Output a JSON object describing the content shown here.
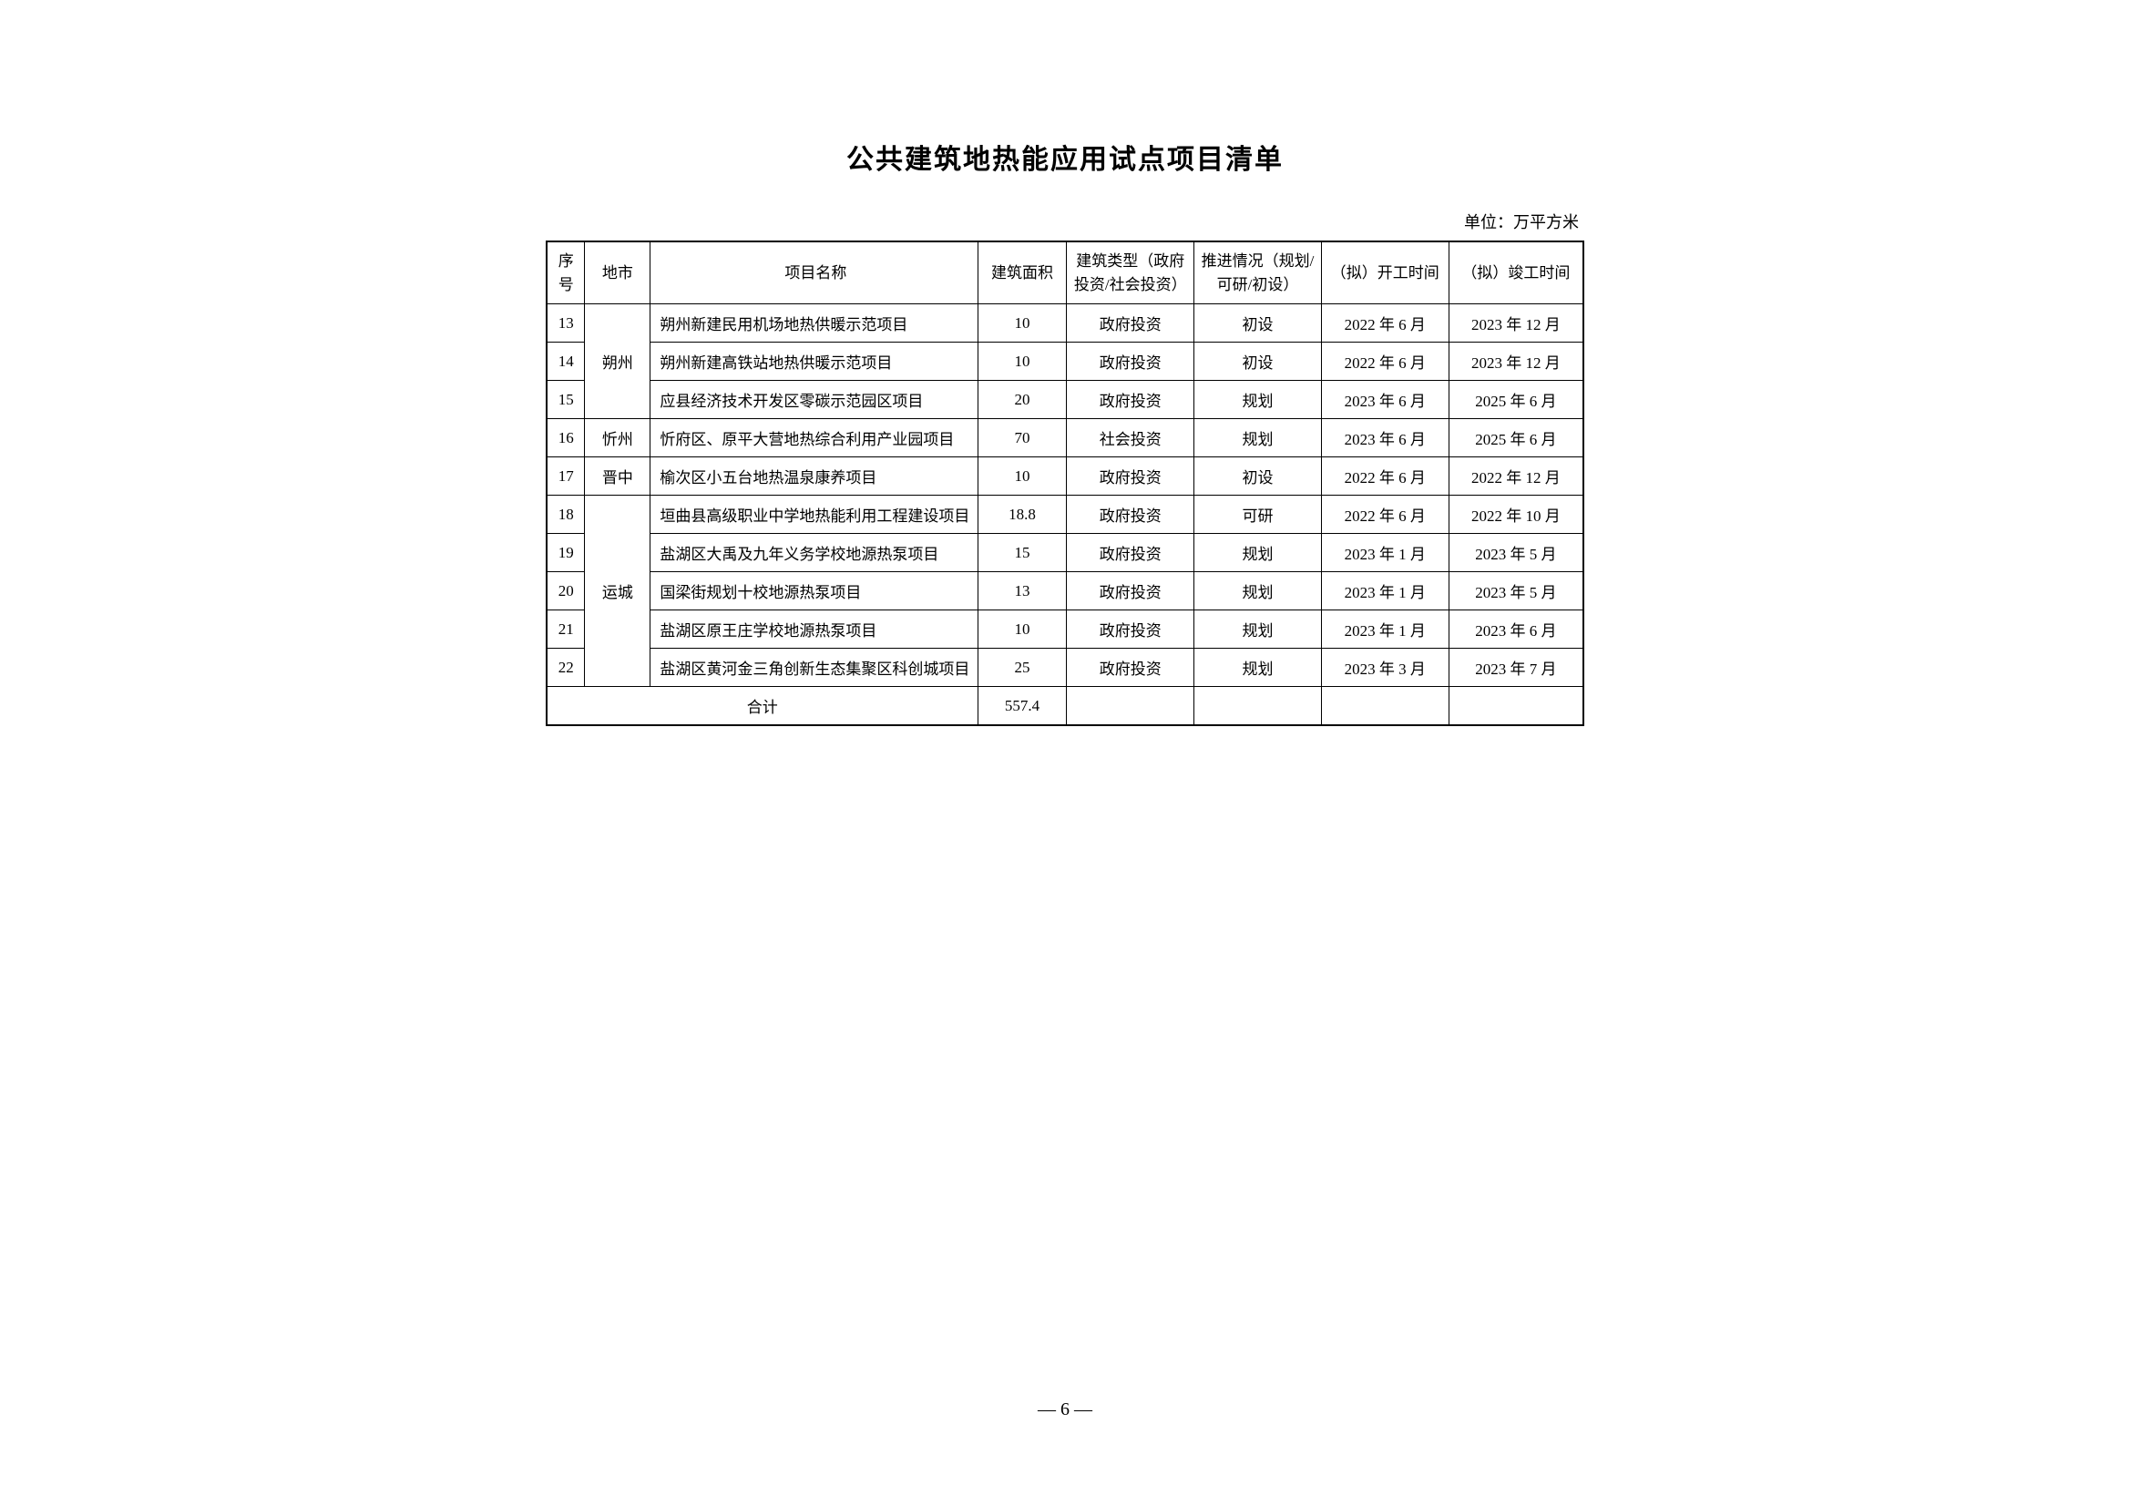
{
  "title": "公共建筑地热能应用试点项目清单",
  "unit_label": "单位：万平方米",
  "headers": {
    "seq": "序号",
    "city": "地市",
    "name": "项目名称",
    "area": "建筑面积",
    "type": "建筑类型（政府投资/社会投资）",
    "progress": "推进情况（规划/可研/初设）",
    "start": "（拟）开工时间",
    "end": "（拟）竣工时间"
  },
  "city_groups": [
    {
      "city": "朔州",
      "rowspan": 3
    },
    {
      "city": "忻州",
      "rowspan": 1
    },
    {
      "city": "晋中",
      "rowspan": 1
    },
    {
      "city": "运城",
      "rowspan": 5
    }
  ],
  "rows": [
    {
      "seq": "13",
      "city_index": 0,
      "show_city": true,
      "name": "朔州新建民用机场地热供暖示范项目",
      "area": "10",
      "type": "政府投资",
      "progress": "初设",
      "start": "2022 年 6 月",
      "end": "2023 年 12 月"
    },
    {
      "seq": "14",
      "city_index": 0,
      "show_city": false,
      "name": "朔州新建高铁站地热供暖示范项目",
      "area": "10",
      "type": "政府投资",
      "progress": "初设",
      "start": "2022 年 6 月",
      "end": "2023 年 12 月"
    },
    {
      "seq": "15",
      "city_index": 0,
      "show_city": false,
      "name": "应县经济技术开发区零碳示范园区项目",
      "area": "20",
      "type": "政府投资",
      "progress": "规划",
      "start": "2023 年 6 月",
      "end": "2025 年 6 月"
    },
    {
      "seq": "16",
      "city_index": 1,
      "show_city": true,
      "name": "忻府区、原平大营地热综合利用产业园项目",
      "area": "70",
      "type": "社会投资",
      "progress": "规划",
      "start": "2023 年 6 月",
      "end": "2025 年 6 月"
    },
    {
      "seq": "17",
      "city_index": 2,
      "show_city": true,
      "name": "榆次区小五台地热温泉康养项目",
      "area": "10",
      "type": "政府投资",
      "progress": "初设",
      "start": "2022 年 6 月",
      "end": "2022 年 12 月"
    },
    {
      "seq": "18",
      "city_index": 3,
      "show_city": true,
      "name": "垣曲县高级职业中学地热能利用工程建设项目",
      "area": "18.8",
      "type": "政府投资",
      "progress": "可研",
      "start": "2022 年 6 月",
      "end": "2022 年 10 月"
    },
    {
      "seq": "19",
      "city_index": 3,
      "show_city": false,
      "name": "盐湖区大禹及九年义务学校地源热泵项目",
      "area": "15",
      "type": "政府投资",
      "progress": "规划",
      "start": "2023 年 1 月",
      "end": "2023 年 5 月"
    },
    {
      "seq": "20",
      "city_index": 3,
      "show_city": false,
      "name": "国梁街规划十校地源热泵项目",
      "area": "13",
      "type": "政府投资",
      "progress": "规划",
      "start": "2023 年 1 月",
      "end": "2023 年 5 月"
    },
    {
      "seq": "21",
      "city_index": 3,
      "show_city": false,
      "name": "盐湖区原王庄学校地源热泵项目",
      "area": "10",
      "type": "政府投资",
      "progress": "规划",
      "start": "2023 年 1 月",
      "end": "2023 年 6 月"
    },
    {
      "seq": "22",
      "city_index": 3,
      "show_city": false,
      "name": "盐湖区黄河金三角创新生态集聚区科创城项目",
      "area": "25",
      "type": "政府投资",
      "progress": "规划",
      "start": "2023 年 3 月",
      "end": "2023 年 7 月"
    }
  ],
  "total": {
    "label": "合计",
    "area": "557.4"
  },
  "page_number": "— 6 —"
}
